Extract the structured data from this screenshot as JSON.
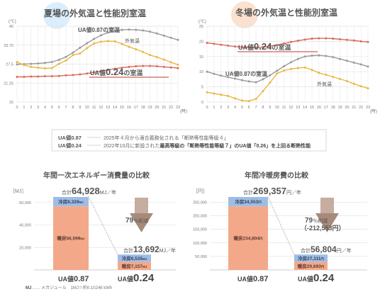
{
  "chart_data": [
    {
      "type": "line",
      "title": "夏場の外気温と性能別室温",
      "y_unit": "(℃)",
      "x_unit": "(時)",
      "ylim": [
        15,
        40
      ],
      "y_ticks": [
        "40",
        "33.75",
        "27.5",
        "21.25",
        "15"
      ],
      "x": [
        0,
        1,
        2,
        3,
        4,
        5,
        6,
        7,
        8,
        9,
        10,
        11,
        12,
        13,
        14,
        15,
        16,
        17,
        18,
        19,
        20,
        21,
        22,
        23
      ],
      "series": [
        {
          "name": "UA値0.87の室温",
          "color": "#9a9a9a",
          "values": [
            27.4,
            27.5,
            27.6,
            27.7,
            27.9,
            28.2,
            28.9,
            29.9,
            31.3,
            32.9,
            34.4,
            35.8,
            37.0,
            37.9,
            38.5,
            38.8,
            38.9,
            38.8,
            38.6,
            38.2,
            37.6,
            36.9,
            36.2,
            35.5
          ]
        },
        {
          "name": "外気温",
          "color": "#e8b840",
          "values": [
            28.2,
            27.2,
            26.6,
            26.3,
            26.1,
            26.2,
            27.6,
            28.7,
            30.5,
            31.0,
            32.8,
            34.3,
            34.9,
            35.1,
            35.0,
            34.2,
            33.2,
            32.4,
            31.5,
            30.5,
            29.8,
            29.0,
            28.1,
            27.3
          ]
        },
        {
          "name": "UA値0.24の室温",
          "color": "#d96a5a",
          "values": [
            23.3,
            23.3,
            23.4,
            23.4,
            23.5,
            23.5,
            23.6,
            23.8,
            23.9,
            24.1,
            24.4,
            24.8,
            25.2,
            25.6,
            26.0,
            26.3,
            26.6,
            26.8,
            26.9,
            26.9,
            26.8,
            26.6,
            26.4,
            26.2
          ]
        }
      ],
      "labels": {
        "ua087": "UA値0.87の室温",
        "outside": "外気温",
        "ua024_prefix": "UA値",
        "ua024_value": "0.24",
        "ua024_suffix": "の室温"
      }
    },
    {
      "type": "line",
      "title": "冬場の外気温と性能別室温",
      "y_unit": "(℃)",
      "x_unit": "(時)",
      "ylim": [
        0,
        25
      ],
      "y_ticks": [
        "25",
        "20",
        "15",
        "10",
        "5",
        "0"
      ],
      "x": [
        0,
        1,
        2,
        3,
        4,
        5,
        6,
        7,
        8,
        9,
        10,
        11,
        12,
        13,
        14,
        15,
        16,
        17,
        18,
        19,
        20,
        21,
        22,
        23
      ],
      "series": [
        {
          "name": "UA値0.24の室温",
          "color": "#d96a5a",
          "values": [
            19.5,
            19.2,
            18.9,
            18.6,
            18.3,
            18.1,
            18.0,
            18.0,
            18.1,
            18.4,
            18.8,
            19.3,
            19.8,
            20.2,
            20.6,
            20.9,
            21.0,
            21.0,
            20.9,
            20.7,
            20.5,
            20.3,
            20.0,
            19.8
          ]
        },
        {
          "name": "UA値0.87の室温",
          "color": "#9a9a9a",
          "values": [
            10.0,
            9.3,
            8.7,
            8.2,
            7.7,
            7.2,
            6.8,
            6.5,
            7.5,
            8.8,
            10.3,
            11.8,
            13.1,
            14.2,
            15.0,
            15.3,
            15.4,
            15.2,
            14.8,
            14.2,
            13.6,
            13.0,
            12.4,
            11.7
          ]
        },
        {
          "name": "外気温",
          "color": "#e8b840",
          "values": [
            3.2,
            2.8,
            2.4,
            2.0,
            1.2,
            0.5,
            0.3,
            1.0,
            3.6,
            6.4,
            9.4,
            10.4,
            10.9,
            11.2,
            11.4,
            10.6,
            9.6,
            9.0,
            8.3,
            7.6,
            6.9,
            6.0,
            5.2,
            4.5
          ]
        }
      ],
      "labels": {
        "ua024_prefix": "UA値",
        "ua024_value": "0.24",
        "ua024_suffix": "の室温",
        "ua087": "UA値0.87の室温",
        "outside": "外気温"
      }
    },
    {
      "type": "bar",
      "title": "年間一次エネルギー消費量の比較",
      "y_unit": "［MJ］",
      "ylim": [
        0,
        64928
      ],
      "y_ticks": [
        {
          "label": "60,000",
          "value": 60000
        },
        {
          "label": "40,000",
          "value": 40000
        },
        {
          "label": "20,000",
          "value": 20000
        }
      ],
      "categories": [
        "UA値0.87",
        "UA値0.24"
      ],
      "category_labels": [
        {
          "prefix": "UA値",
          "value": "0.87"
        },
        {
          "prefix": "UA値",
          "value": "0.24"
        }
      ],
      "series": [
        {
          "name": "暖房",
          "color": "#f4a88a",
          "values": [
            56599,
            7157
          ]
        },
        {
          "name": "冷房",
          "color": "#9fbde4",
          "values": [
            8329,
            6535
          ]
        }
      ],
      "segment_labels": [
        {
          "cool": "冷房8,329",
          "cool_unit": "MJ",
          "heat": "暖房56,599",
          "heat_unit": "MJ"
        },
        {
          "cool": "冷房6,535",
          "cool_unit": "MJ",
          "heat": "暖房7,157",
          "heat_unit": "MJ"
        }
      ],
      "totals": [
        {
          "prefix": "合計",
          "value": "64,928",
          "unit": "MJ／年"
        },
        {
          "prefix": "合計",
          "value": "13,692",
          "unit": "MJ／年"
        }
      ],
      "reduction": {
        "value": "79",
        "unit": "％削減"
      }
    },
    {
      "type": "bar",
      "title": "年間冷暖房費の比較",
      "y_unit": "［円］",
      "ylim": [
        0,
        269357
      ],
      "y_ticks": [
        {
          "label": "250,000",
          "value": 250000
        },
        {
          "label": "200,000",
          "value": 200000
        },
        {
          "label": "150,000",
          "value": 150000
        },
        {
          "label": "100,000",
          "value": 100000
        },
        {
          "label": "50,000",
          "value": 50000
        }
      ],
      "categories": [
        "UA値0.87",
        "UA値0.24"
      ],
      "category_labels": [
        {
          "prefix": "UA値",
          "value": "0.87"
        },
        {
          "prefix": "UA値",
          "value": "0.24"
        }
      ],
      "series": [
        {
          "name": "暖房",
          "color": "#f4a88a",
          "values": [
            234804,
            29693
          ]
        },
        {
          "name": "冷房",
          "color": "#9fbde4",
          "values": [
            34553,
            27111
          ]
        }
      ],
      "segment_labels": [
        {
          "cool": "冷房34,553",
          "cool_unit": "円",
          "heat": "暖房234,804",
          "heat_unit": "円"
        },
        {
          "cool": "冷房27,111",
          "cool_unit": "円",
          "heat": "暖房29,693",
          "heat_unit": "円"
        }
      ],
      "totals": [
        {
          "prefix": "合計",
          "value": "269,357",
          "unit": "円／年"
        },
        {
          "prefix": "合計",
          "value": "56,804",
          "unit": "円／年"
        }
      ],
      "reduction": {
        "value": "79",
        "unit": "％削減",
        "amount": "（-212,553円）"
      }
    }
  ],
  "legend_box": {
    "rows": [
      {
        "label": "UA値0.87",
        "text": "2025年４月から適合義務化される「断熱等性能等級４」"
      },
      {
        "label": "UA値0.24",
        "text_before": "2022年10月に新設された",
        "text_bold": "最高等級の「断熱等性能等級７」のUA値「0.26」を上回る断熱性能"
      }
    ]
  },
  "footnote": {
    "abbr": "MJ",
    "text": "…… メガジュール　1MJ＝約0.10246 kWh"
  },
  "colors": {
    "grid": "#e3e3e3",
    "axis_text": "#777777",
    "title_text": "#555555",
    "summer_circle": "#dbeefb",
    "winter_circle": "#fbe1cf",
    "arrow": "#b79d8f",
    "accent_red": "#c0392b"
  }
}
